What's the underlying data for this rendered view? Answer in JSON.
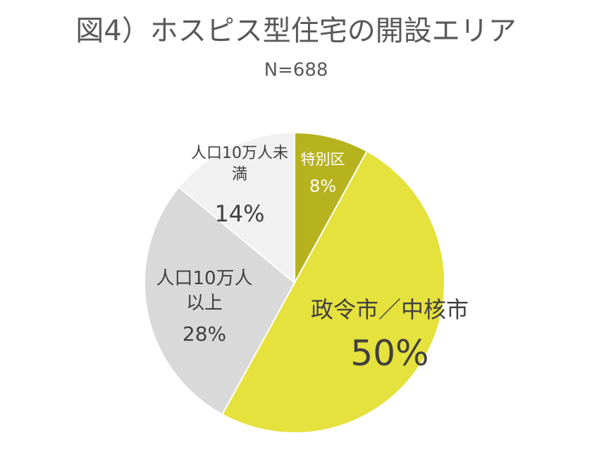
{
  "chart_data": {
    "type": "pie",
    "title": "図4）ホスピス型住宅の開設エリア",
    "subtitle": "N=688",
    "categories": [
      "特別区",
      "政令市／中核市",
      "人口10万人以上",
      "人口10万人未満"
    ],
    "values": [
      8,
      50,
      28,
      14
    ],
    "value_labels": [
      "8%",
      "50%",
      "28%",
      "14%"
    ],
    "colors": [
      "#b6b31f",
      "#e5e13d",
      "#d9d9d9",
      "#f1f1f1"
    ]
  }
}
